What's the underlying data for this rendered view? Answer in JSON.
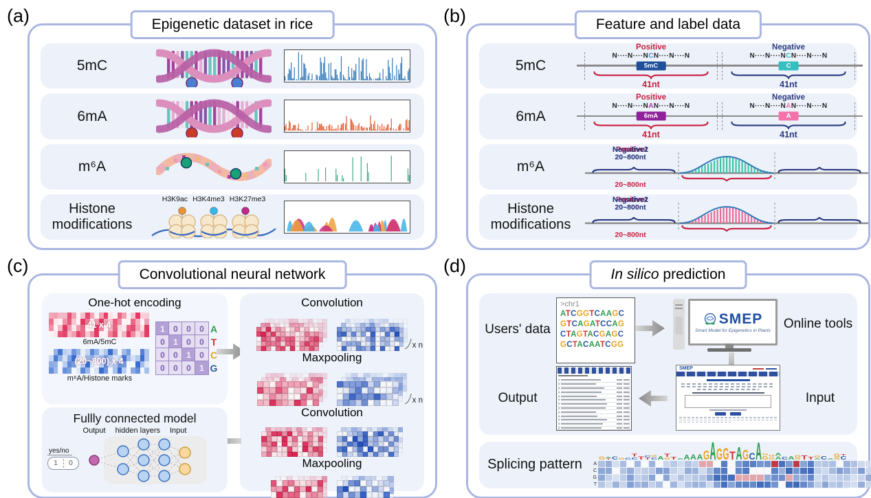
{
  "colors": {
    "accent_border": "#aab6e2",
    "row_bg": "#edf2fa",
    "positive_red": "#c81f3d",
    "negative_navy": "#2b3a7e",
    "track_5mc": "#2e75b6",
    "track_6ma": "#e1562a",
    "track_m6a": "#169d6f",
    "histone_cyan": "#41b3e8",
    "histone_orange": "#f0a13c",
    "histone_magenta": "#cc2d7e",
    "base_colors": {
      "A": "#2e9e4f",
      "T": "#d63031",
      "C": "#2458a6",
      "G": "#e8a21f"
    }
  },
  "panel_a": {
    "label": "(a)",
    "title": "Epigenetic dataset in rice",
    "rows": [
      {
        "label": "5mC"
      },
      {
        "label": "6mA"
      },
      {
        "label": "m⁶A"
      },
      {
        "label": "Histone modifications"
      }
    ],
    "histone_marks": [
      "H3K9ac",
      "H3K4me3",
      "H3K27me3"
    ]
  },
  "panel_b": {
    "label": "(b)",
    "title": "Feature and label data",
    "seq_rows": [
      {
        "label": "5mC",
        "positive": {
          "title": "Positive",
          "left": "N····N····N",
          "mid": "C",
          "right": "N····N····N",
          "mid_color": "#3f9be0",
          "box": "5mC",
          "box_color": "#1f4e9b",
          "nt": "41nt"
        },
        "negative": {
          "title": "Negative",
          "left": "N····N····N",
          "mid": "C",
          "right": "N····N····N",
          "mid_color": "#35bfc0",
          "box": "C",
          "box_color": "#35bfc0",
          "nt": "41nt"
        }
      },
      {
        "label": "6mA",
        "positive": {
          "title": "Positive",
          "left": "N····N····N",
          "mid": "A",
          "right": "N····N····N",
          "mid_color": "#b03ab0",
          "box": "6mA",
          "box_color": "#8f219b",
          "nt": "41nt"
        },
        "negative": {
          "title": "Negative",
          "left": "N····N····N",
          "mid": "A",
          "right": "N····N····N",
          "mid_color": "#f472ab",
          "box": "A",
          "box_color": "#f472ab",
          "nt": "41nt"
        }
      }
    ],
    "peak_rows": [
      {
        "label": "m⁶A",
        "neg1": "Negative1",
        "pos": "Positive",
        "neg2": "Negative2",
        "nt_side": "20~800nt",
        "nt_mid": "20~800nt",
        "bar_color": "#3ec3a6"
      },
      {
        "label": "Histone modifications",
        "neg1": "Negative1",
        "pos": "Positive",
        "neg2": "Negative2",
        "nt_side": "20~800nt",
        "nt_mid": "20~800nt",
        "bar_color": "#ec6a96"
      }
    ]
  },
  "panel_c": {
    "label": "(c)",
    "title": "Convolutional neural network",
    "onehot": {
      "title": "One-hot encoding",
      "red_matrix_text": "41 x 4",
      "red_caption": "6mA/5mC",
      "blue_matrix_text": "(20~800) x 4",
      "blue_caption": "m⁶A/Histone marks",
      "rows": [
        [
          "1",
          "0",
          "0",
          "0"
        ],
        [
          "0",
          "1",
          "0",
          "0"
        ],
        [
          "0",
          "0",
          "1",
          "0"
        ],
        [
          "0",
          "0",
          "0",
          "1"
        ]
      ],
      "letters": [
        "A",
        "T",
        "C",
        "G"
      ],
      "letter_colors": [
        "#2e9e4f",
        "#d63031",
        "#e8a21f",
        "#2b5d9b"
      ]
    },
    "flow": {
      "conv1": "Convolution",
      "max1": "Maxpooling",
      "conv2": "Convolution",
      "max2": "Maxpooling",
      "xn": "x n"
    },
    "fc": {
      "title": "Fullly connected model",
      "out": "Output",
      "hid": "hidden layers",
      "inp": "Input",
      "yesno": "yes/no",
      "one": "1",
      "zero": "0"
    }
  },
  "panel_d": {
    "label": "(d)",
    "title_italic": "In silico",
    "title_rest": " prediction",
    "users_data": "Users' data",
    "online_tools": "Online tools",
    "output": "Output",
    "input": "Input",
    "fasta": {
      "header": ">chr1",
      "lines": [
        "ATCGGTCAAGC",
        "GTCAGATCCAG",
        "CTAGTACGAGC",
        "GCTACAATCGG"
      ]
    },
    "smep": {
      "name": "SMEP",
      "tagline": "Smart Model for Epigenetics in Plants"
    },
    "splicing": {
      "label": "Splicing pattern",
      "row_labels": [
        "A",
        "C",
        "G",
        "T"
      ],
      "motif_start_col": 13,
      "motif": [
        {
          "l": "A",
          "h": 7
        },
        {
          "l": "A",
          "h": 8
        },
        {
          "l": "A",
          "h": 8
        },
        {
          "l": "G",
          "h": 13
        },
        {
          "l": "A",
          "h": 26
        },
        {
          "l": "G",
          "h": 16
        },
        {
          "l": "G",
          "h": 17
        },
        {
          "l": "T",
          "h": 12
        },
        {
          "l": "A",
          "h": 18
        },
        {
          "l": "G",
          "h": 14
        },
        {
          "l": "C",
          "h": 10
        },
        {
          "l": "A",
          "h": 25
        }
      ],
      "red_cells": [
        [
          0,
          24
        ],
        [
          0,
          27
        ]
      ],
      "pink_cells": [
        [
          2,
          19
        ],
        [
          2,
          20
        ],
        [
          2,
          21
        ],
        [
          2,
          22
        ],
        [
          2,
          26
        ],
        [
          0,
          14
        ],
        [
          0,
          15
        ]
      ]
    }
  }
}
